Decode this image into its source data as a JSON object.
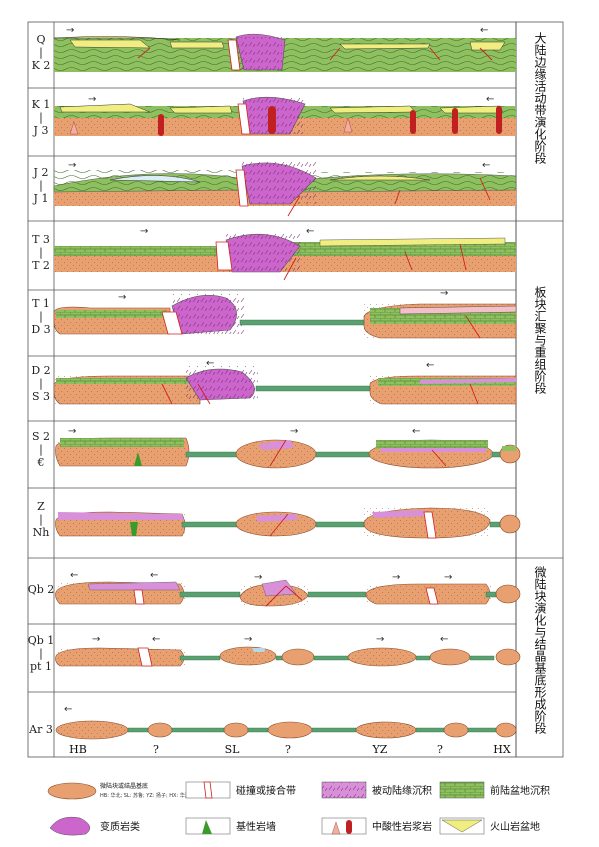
{
  "colors": {
    "basement": "#e8a070",
    "metamorphic": "#cc66cc",
    "foreland": "#8fc060",
    "volcanic": "#f0ee80",
    "suture": "#d02020",
    "basic_dyke": "#3a9a2a",
    "ocean": "#5aa070",
    "passive": "#d890d8"
  },
  "rows": [
    {
      "top": "Q",
      "mid": "|",
      "bot": "K 2"
    },
    {
      "top": "K 1",
      "mid": "|",
      "bot": "J 3"
    },
    {
      "top": "J 2",
      "mid": "|",
      "bot": "J 1"
    },
    {
      "top": "T 3",
      "mid": "|",
      "bot": "T 2"
    },
    {
      "top": "T 1",
      "mid": "|",
      "bot": "D 3"
    },
    {
      "top": "D 2",
      "mid": "|",
      "bot": "S 3"
    },
    {
      "top": "S 2",
      "mid": "|",
      "bot": "€"
    },
    {
      "top": "Z",
      "mid": "|",
      "bot": "Nh"
    },
    {
      "top": "Qb 2",
      "mid": "",
      "bot": ""
    },
    {
      "top": "Qb 1",
      "mid": "|",
      "bot": "pt 1"
    },
    {
      "top": "Ar 3",
      "mid": "",
      "bot": ""
    }
  ],
  "stages": [
    {
      "text": "大陆边缘活动带演化阶段"
    },
    {
      "text": "板块汇聚与重组阶段"
    },
    {
      "text": "微陆块演化与结晶基底形成阶段"
    }
  ],
  "bottom_labels": [
    "HB",
    "?",
    "SL",
    "?",
    "YZ",
    "?",
    "HX"
  ],
  "legend": [
    {
      "label": "微陆块或结晶基底",
      "small": "HB: 华北; SL: 苏鲁; YZ: 扬子; HX: 华夏; ?: 未知"
    },
    {
      "label": "碰撞或接合带"
    },
    {
      "label": "被动陆缘沉积"
    },
    {
      "label": "前陆盆地沉积"
    },
    {
      "label": "变质岩类"
    },
    {
      "label": "基性岩墙"
    },
    {
      "label": "中酸性岩浆岩"
    },
    {
      "label": "火山岩盆地"
    }
  ]
}
